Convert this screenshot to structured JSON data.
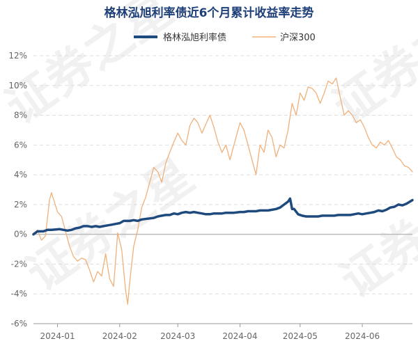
{
  "chart_data": {
    "type": "line",
    "title": "格林泓旭利率债近6个月累计收益率走势",
    "xlabel": "",
    "ylabel": "",
    "ylim": [
      -6,
      12
    ],
    "yticks": [
      -6,
      -4,
      -2,
      0,
      2,
      4,
      6,
      8,
      10,
      12
    ],
    "ytick_labels": [
      "-6%",
      "-4%",
      "-2%",
      "0%",
      "2%",
      "4%",
      "6%",
      "8%",
      "10%",
      "12%"
    ],
    "xlim": [
      "2023-12-20",
      "2024-06-26"
    ],
    "xticks": [
      {
        "date": "2024-01-01",
        "label": "2024-01"
      },
      {
        "date": "2024-02-01",
        "label": "2024-02"
      },
      {
        "date": "2024-03-01",
        "label": "2024-03"
      },
      {
        "date": "2024-04-01",
        "label": "2024-04"
      },
      {
        "date": "2024-05-01",
        "label": "2024-05"
      },
      {
        "date": "2024-06-01",
        "label": "2024-06"
      }
    ],
    "legend_position": "top",
    "grid": true,
    "series": [
      {
        "name": "格林泓旭利率债",
        "color": "#1e4a7e",
        "points": [
          [
            "2023-12-20",
            0.0
          ],
          [
            "2023-12-22",
            0.2
          ],
          [
            "2023-12-25",
            0.2
          ],
          [
            "2023-12-27",
            0.3
          ],
          [
            "2023-12-29",
            0.3
          ],
          [
            "2024-01-02",
            0.35
          ],
          [
            "2024-01-04",
            0.3
          ],
          [
            "2024-01-06",
            0.25
          ],
          [
            "2024-01-08",
            0.3
          ],
          [
            "2024-01-10",
            0.4
          ],
          [
            "2024-01-12",
            0.45
          ],
          [
            "2024-01-14",
            0.55
          ],
          [
            "2024-01-16",
            0.55
          ],
          [
            "2024-01-18",
            0.5
          ],
          [
            "2024-01-20",
            0.55
          ],
          [
            "2024-01-22",
            0.5
          ],
          [
            "2024-01-24",
            0.55
          ],
          [
            "2024-01-26",
            0.6
          ],
          [
            "2024-01-28",
            0.65
          ],
          [
            "2024-01-30",
            0.7
          ],
          [
            "2024-02-01",
            0.75
          ],
          [
            "2024-02-03",
            0.9
          ],
          [
            "2024-02-06",
            0.9
          ],
          [
            "2024-02-08",
            0.95
          ],
          [
            "2024-02-10",
            0.9
          ],
          [
            "2024-02-12",
            1.0
          ],
          [
            "2024-02-15",
            1.05
          ],
          [
            "2024-02-18",
            1.1
          ],
          [
            "2024-02-20",
            1.2
          ],
          [
            "2024-02-22",
            1.25
          ],
          [
            "2024-02-24",
            1.3
          ],
          [
            "2024-02-26",
            1.3
          ],
          [
            "2024-02-28",
            1.4
          ],
          [
            "2024-03-01",
            1.35
          ],
          [
            "2024-03-03",
            1.45
          ],
          [
            "2024-03-05",
            1.5
          ],
          [
            "2024-03-07",
            1.45
          ],
          [
            "2024-03-09",
            1.5
          ],
          [
            "2024-03-11",
            1.45
          ],
          [
            "2024-03-13",
            1.4
          ],
          [
            "2024-03-15",
            1.35
          ],
          [
            "2024-03-17",
            1.35
          ],
          [
            "2024-03-19",
            1.4
          ],
          [
            "2024-03-21",
            1.4
          ],
          [
            "2024-03-23",
            1.4
          ],
          [
            "2024-03-25",
            1.45
          ],
          [
            "2024-03-27",
            1.45
          ],
          [
            "2024-03-29",
            1.45
          ],
          [
            "2024-04-01",
            1.5
          ],
          [
            "2024-04-03",
            1.5
          ],
          [
            "2024-04-05",
            1.55
          ],
          [
            "2024-04-07",
            1.55
          ],
          [
            "2024-04-09",
            1.55
          ],
          [
            "2024-04-11",
            1.6
          ],
          [
            "2024-04-13",
            1.6
          ],
          [
            "2024-04-15",
            1.6
          ],
          [
            "2024-04-17",
            1.65
          ],
          [
            "2024-04-19",
            1.7
          ],
          [
            "2024-04-21",
            1.8
          ],
          [
            "2024-04-23",
            2.0
          ],
          [
            "2024-04-25",
            2.2
          ],
          [
            "2024-04-26",
            2.4
          ],
          [
            "2024-04-27",
            1.7
          ],
          [
            "2024-04-28",
            1.7
          ],
          [
            "2024-04-30",
            1.35
          ],
          [
            "2024-05-02",
            1.25
          ],
          [
            "2024-05-04",
            1.2
          ],
          [
            "2024-05-06",
            1.2
          ],
          [
            "2024-05-08",
            1.2
          ],
          [
            "2024-05-10",
            1.2
          ],
          [
            "2024-05-12",
            1.25
          ],
          [
            "2024-05-14",
            1.25
          ],
          [
            "2024-05-16",
            1.25
          ],
          [
            "2024-05-18",
            1.25
          ],
          [
            "2024-05-20",
            1.3
          ],
          [
            "2024-05-22",
            1.3
          ],
          [
            "2024-05-24",
            1.3
          ],
          [
            "2024-05-26",
            1.3
          ],
          [
            "2024-05-28",
            1.35
          ],
          [
            "2024-05-30",
            1.4
          ],
          [
            "2024-06-01",
            1.35
          ],
          [
            "2024-06-03",
            1.4
          ],
          [
            "2024-06-05",
            1.45
          ],
          [
            "2024-06-07",
            1.5
          ],
          [
            "2024-06-09",
            1.6
          ],
          [
            "2024-06-11",
            1.55
          ],
          [
            "2024-06-13",
            1.65
          ],
          [
            "2024-06-15",
            1.8
          ],
          [
            "2024-06-17",
            1.85
          ],
          [
            "2024-06-19",
            2.0
          ],
          [
            "2024-06-21",
            1.95
          ],
          [
            "2024-06-23",
            2.05
          ],
          [
            "2024-06-26",
            2.3
          ]
        ]
      },
      {
        "name": "沪深300",
        "color": "#f0b07a",
        "points": [
          [
            "2023-12-20",
            0.0
          ],
          [
            "2023-12-22",
            0.3
          ],
          [
            "2023-12-24",
            -0.4
          ],
          [
            "2023-12-26",
            -0.1
          ],
          [
            "2023-12-28",
            2.3
          ],
          [
            "2023-12-29",
            2.8
          ],
          [
            "2024-01-01",
            1.5
          ],
          [
            "2024-01-03",
            1.2
          ],
          [
            "2024-01-05",
            0.2
          ],
          [
            "2024-01-07",
            -0.8
          ],
          [
            "2024-01-09",
            -1.5
          ],
          [
            "2024-01-11",
            -1.8
          ],
          [
            "2024-01-13",
            -1.6
          ],
          [
            "2024-01-15",
            -1.7
          ],
          [
            "2024-01-17",
            -2.4
          ],
          [
            "2024-01-19",
            -3.2
          ],
          [
            "2024-01-21",
            -2.5
          ],
          [
            "2024-01-23",
            -2.8
          ],
          [
            "2024-01-25",
            -1.3
          ],
          [
            "2024-01-27",
            -3.0
          ],
          [
            "2024-01-29",
            -3.5
          ],
          [
            "2024-01-31",
            0.1
          ],
          [
            "2024-02-02",
            -1.0
          ],
          [
            "2024-02-04",
            -3.8
          ],
          [
            "2024-02-05",
            -4.7
          ],
          [
            "2024-02-06",
            -3.2
          ],
          [
            "2024-02-08",
            -0.8
          ],
          [
            "2024-02-10",
            0.3
          ],
          [
            "2024-02-12",
            1.8
          ],
          [
            "2024-02-14",
            2.5
          ],
          [
            "2024-02-16",
            3.5
          ],
          [
            "2024-02-18",
            4.5
          ],
          [
            "2024-02-20",
            4.2
          ],
          [
            "2024-02-22",
            3.5
          ],
          [
            "2024-02-24",
            4.8
          ],
          [
            "2024-02-26",
            5.5
          ],
          [
            "2024-02-28",
            6.2
          ],
          [
            "2024-03-01",
            6.8
          ],
          [
            "2024-03-03",
            6.3
          ],
          [
            "2024-03-05",
            6.0
          ],
          [
            "2024-03-07",
            7.3
          ],
          [
            "2024-03-09",
            7.8
          ],
          [
            "2024-03-11",
            7.5
          ],
          [
            "2024-03-13",
            6.8
          ],
          [
            "2024-03-15",
            7.4
          ],
          [
            "2024-03-17",
            8.0
          ],
          [
            "2024-03-19",
            7.2
          ],
          [
            "2024-03-21",
            6.2
          ],
          [
            "2024-03-23",
            5.5
          ],
          [
            "2024-03-25",
            6.0
          ],
          [
            "2024-03-27",
            5.0
          ],
          [
            "2024-03-29",
            6.0
          ],
          [
            "2024-04-01",
            7.5
          ],
          [
            "2024-04-03",
            7.0
          ],
          [
            "2024-04-05",
            6.0
          ],
          [
            "2024-04-07",
            5.0
          ],
          [
            "2024-04-09",
            4.0
          ],
          [
            "2024-04-11",
            6.0
          ],
          [
            "2024-04-13",
            5.5
          ],
          [
            "2024-04-15",
            7.0
          ],
          [
            "2024-04-17",
            6.5
          ],
          [
            "2024-04-19",
            5.2
          ],
          [
            "2024-04-21",
            6.0
          ],
          [
            "2024-04-23",
            5.8
          ],
          [
            "2024-04-25",
            7.0
          ],
          [
            "2024-04-27",
            8.8
          ],
          [
            "2024-04-29",
            8.0
          ],
          [
            "2024-05-01",
            9.5
          ],
          [
            "2024-05-03",
            9.0
          ],
          [
            "2024-05-05",
            9.9
          ],
          [
            "2024-05-07",
            9.8
          ],
          [
            "2024-05-09",
            9.5
          ],
          [
            "2024-05-11",
            8.8
          ],
          [
            "2024-05-13",
            9.5
          ],
          [
            "2024-05-15",
            10.3
          ],
          [
            "2024-05-17",
            10.1
          ],
          [
            "2024-05-19",
            10.5
          ],
          [
            "2024-05-21",
            9.2
          ],
          [
            "2024-05-23",
            8.0
          ],
          [
            "2024-05-25",
            8.3
          ],
          [
            "2024-05-27",
            8.0
          ],
          [
            "2024-05-29",
            7.5
          ],
          [
            "2024-05-31",
            7.7
          ],
          [
            "2024-06-02",
            7.2
          ],
          [
            "2024-06-04",
            6.5
          ],
          [
            "2024-06-06",
            6.0
          ],
          [
            "2024-06-08",
            5.8
          ],
          [
            "2024-06-10",
            6.2
          ],
          [
            "2024-06-12",
            6.0
          ],
          [
            "2024-06-14",
            6.3
          ],
          [
            "2024-06-16",
            5.8
          ],
          [
            "2024-06-18",
            5.2
          ],
          [
            "2024-06-20",
            5.0
          ],
          [
            "2024-06-22",
            4.6
          ],
          [
            "2024-06-24",
            4.5
          ],
          [
            "2024-06-26",
            4.2
          ]
        ]
      }
    ]
  },
  "watermark": {
    "text": "证券之星"
  }
}
